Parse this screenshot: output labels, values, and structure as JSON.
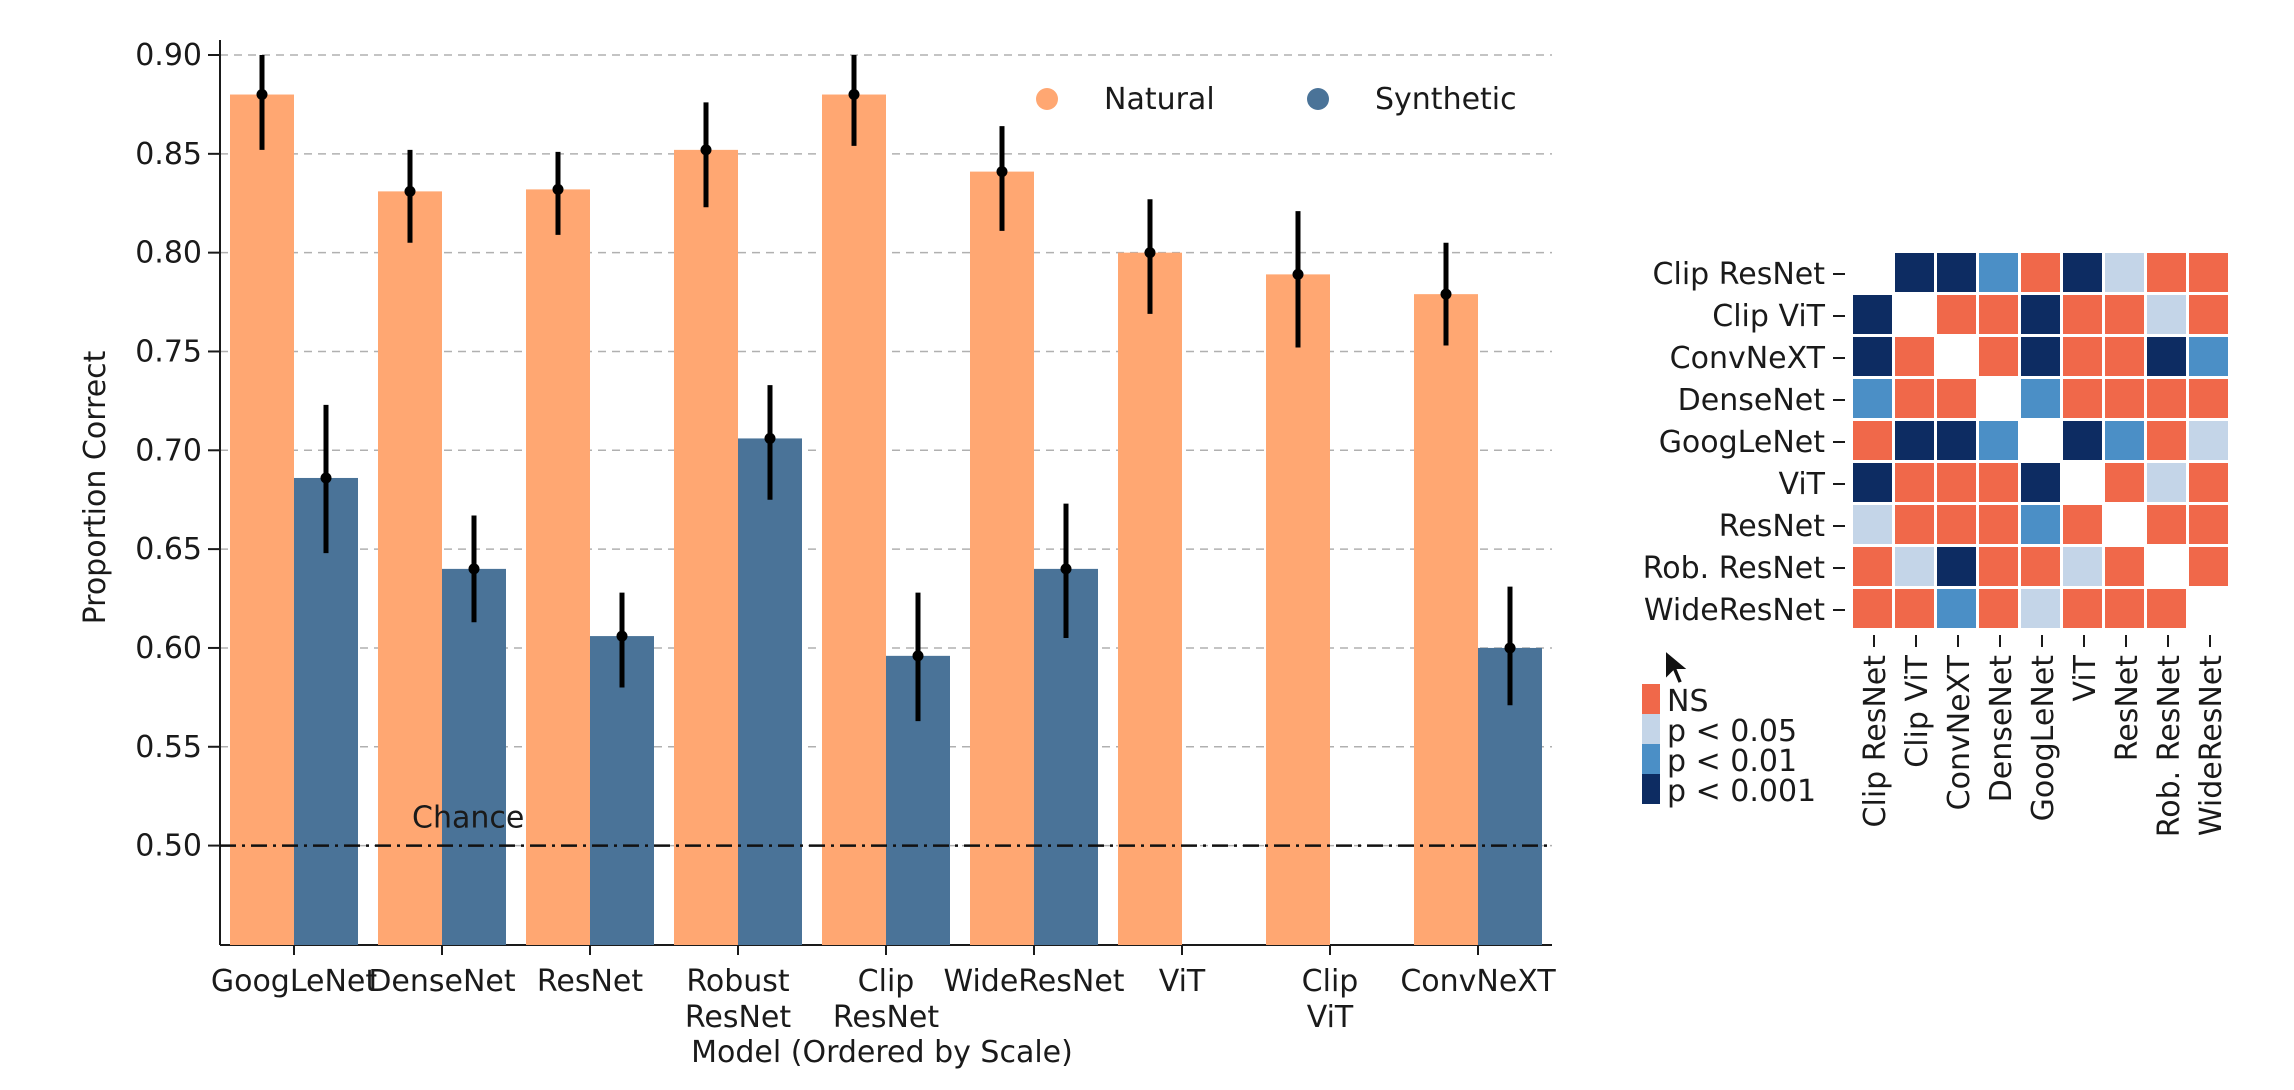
{
  "chart_data": [
    {
      "type": "bar",
      "xlabel": "Model (Ordered by Scale)",
      "ylabel": "Proportion Correct",
      "ylim": [
        0.475,
        0.9
      ],
      "yticks": [
        "0.50",
        "0.55",
        "0.60",
        "0.65",
        "0.70",
        "0.75",
        "0.80",
        "0.85",
        "0.90"
      ],
      "grid": "horizontal dashed",
      "categories": [
        [
          "GoogLeNet"
        ],
        [
          "DenseNet"
        ],
        [
          "ResNet"
        ],
        [
          "Robust",
          "ResNet"
        ],
        [
          "Clip",
          "ResNet"
        ],
        [
          "WideResNet"
        ],
        [
          "ViT"
        ],
        [
          "Clip",
          "ViT"
        ],
        [
          "ConvNeXT"
        ]
      ],
      "series": [
        {
          "name": "Natural",
          "color": "#FFA772",
          "values": [
            0.88,
            0.831,
            0.832,
            0.852,
            0.88,
            0.841,
            0.8,
            0.789,
            0.779
          ],
          "err_low": [
            0.852,
            0.805,
            0.809,
            0.823,
            0.854,
            0.811,
            0.769,
            0.752,
            0.753
          ],
          "err_high": [
            0.9,
            0.852,
            0.851,
            0.876,
            0.9,
            0.864,
            0.827,
            0.821,
            0.805
          ]
        },
        {
          "name": "Synthetic",
          "color": "#4A7398",
          "values": [
            0.686,
            0.64,
            0.606,
            0.706,
            0.596,
            0.64,
            null,
            null,
            0.6
          ],
          "err_low": [
            0.648,
            0.613,
            0.58,
            0.675,
            0.563,
            0.605,
            null,
            null,
            0.571
          ],
          "err_high": [
            0.723,
            0.667,
            0.628,
            0.733,
            0.628,
            0.673,
            null,
            null,
            0.631
          ]
        }
      ],
      "reference_line": {
        "y": 0.5,
        "label": "Chance",
        "style": "dash-dot"
      },
      "legend": {
        "placement": "top-right",
        "markers": "circle"
      }
    },
    {
      "type": "heatmap",
      "labels": [
        "Clip ResNet",
        "Clip ViT",
        "ConvNeXT",
        "DenseNet",
        "GoogLeNet",
        "ViT",
        "ResNet",
        "Rob. ResNet",
        "WideResNet"
      ],
      "matrix": [
        [
          -1,
          3,
          3,
          2,
          0,
          3,
          1,
          0,
          0
        ],
        [
          3,
          -1,
          0,
          0,
          3,
          0,
          0,
          1,
          0
        ],
        [
          3,
          0,
          -1,
          0,
          3,
          0,
          0,
          3,
          2
        ],
        [
          2,
          0,
          0,
          -1,
          2,
          0,
          0,
          0,
          0
        ],
        [
          0,
          3,
          3,
          2,
          -1,
          3,
          2,
          0,
          1
        ],
        [
          3,
          0,
          0,
          0,
          3,
          -1,
          0,
          1,
          0
        ],
        [
          1,
          0,
          0,
          0,
          2,
          0,
          -1,
          0,
          0
        ],
        [
          0,
          1,
          3,
          0,
          0,
          1,
          0,
          -1,
          0
        ],
        [
          0,
          0,
          2,
          0,
          1,
          0,
          0,
          0,
          -1
        ]
      ],
      "colorbar": {
        "levels": [
          {
            "label": "NS",
            "color": "#F0684A"
          },
          {
            "label": "p < 0.05",
            "color": "#C4D5E8"
          },
          {
            "label": "p < 0.01",
            "color": "#4B8FC6"
          },
          {
            "label": "p < 0.001",
            "color": "#0D2C62"
          }
        ]
      }
    }
  ],
  "colors": {
    "grid": "#b0b0b0",
    "axis": "#1a1a1a",
    "errorbar": "#000000",
    "empty_cell": "#ffffff"
  }
}
